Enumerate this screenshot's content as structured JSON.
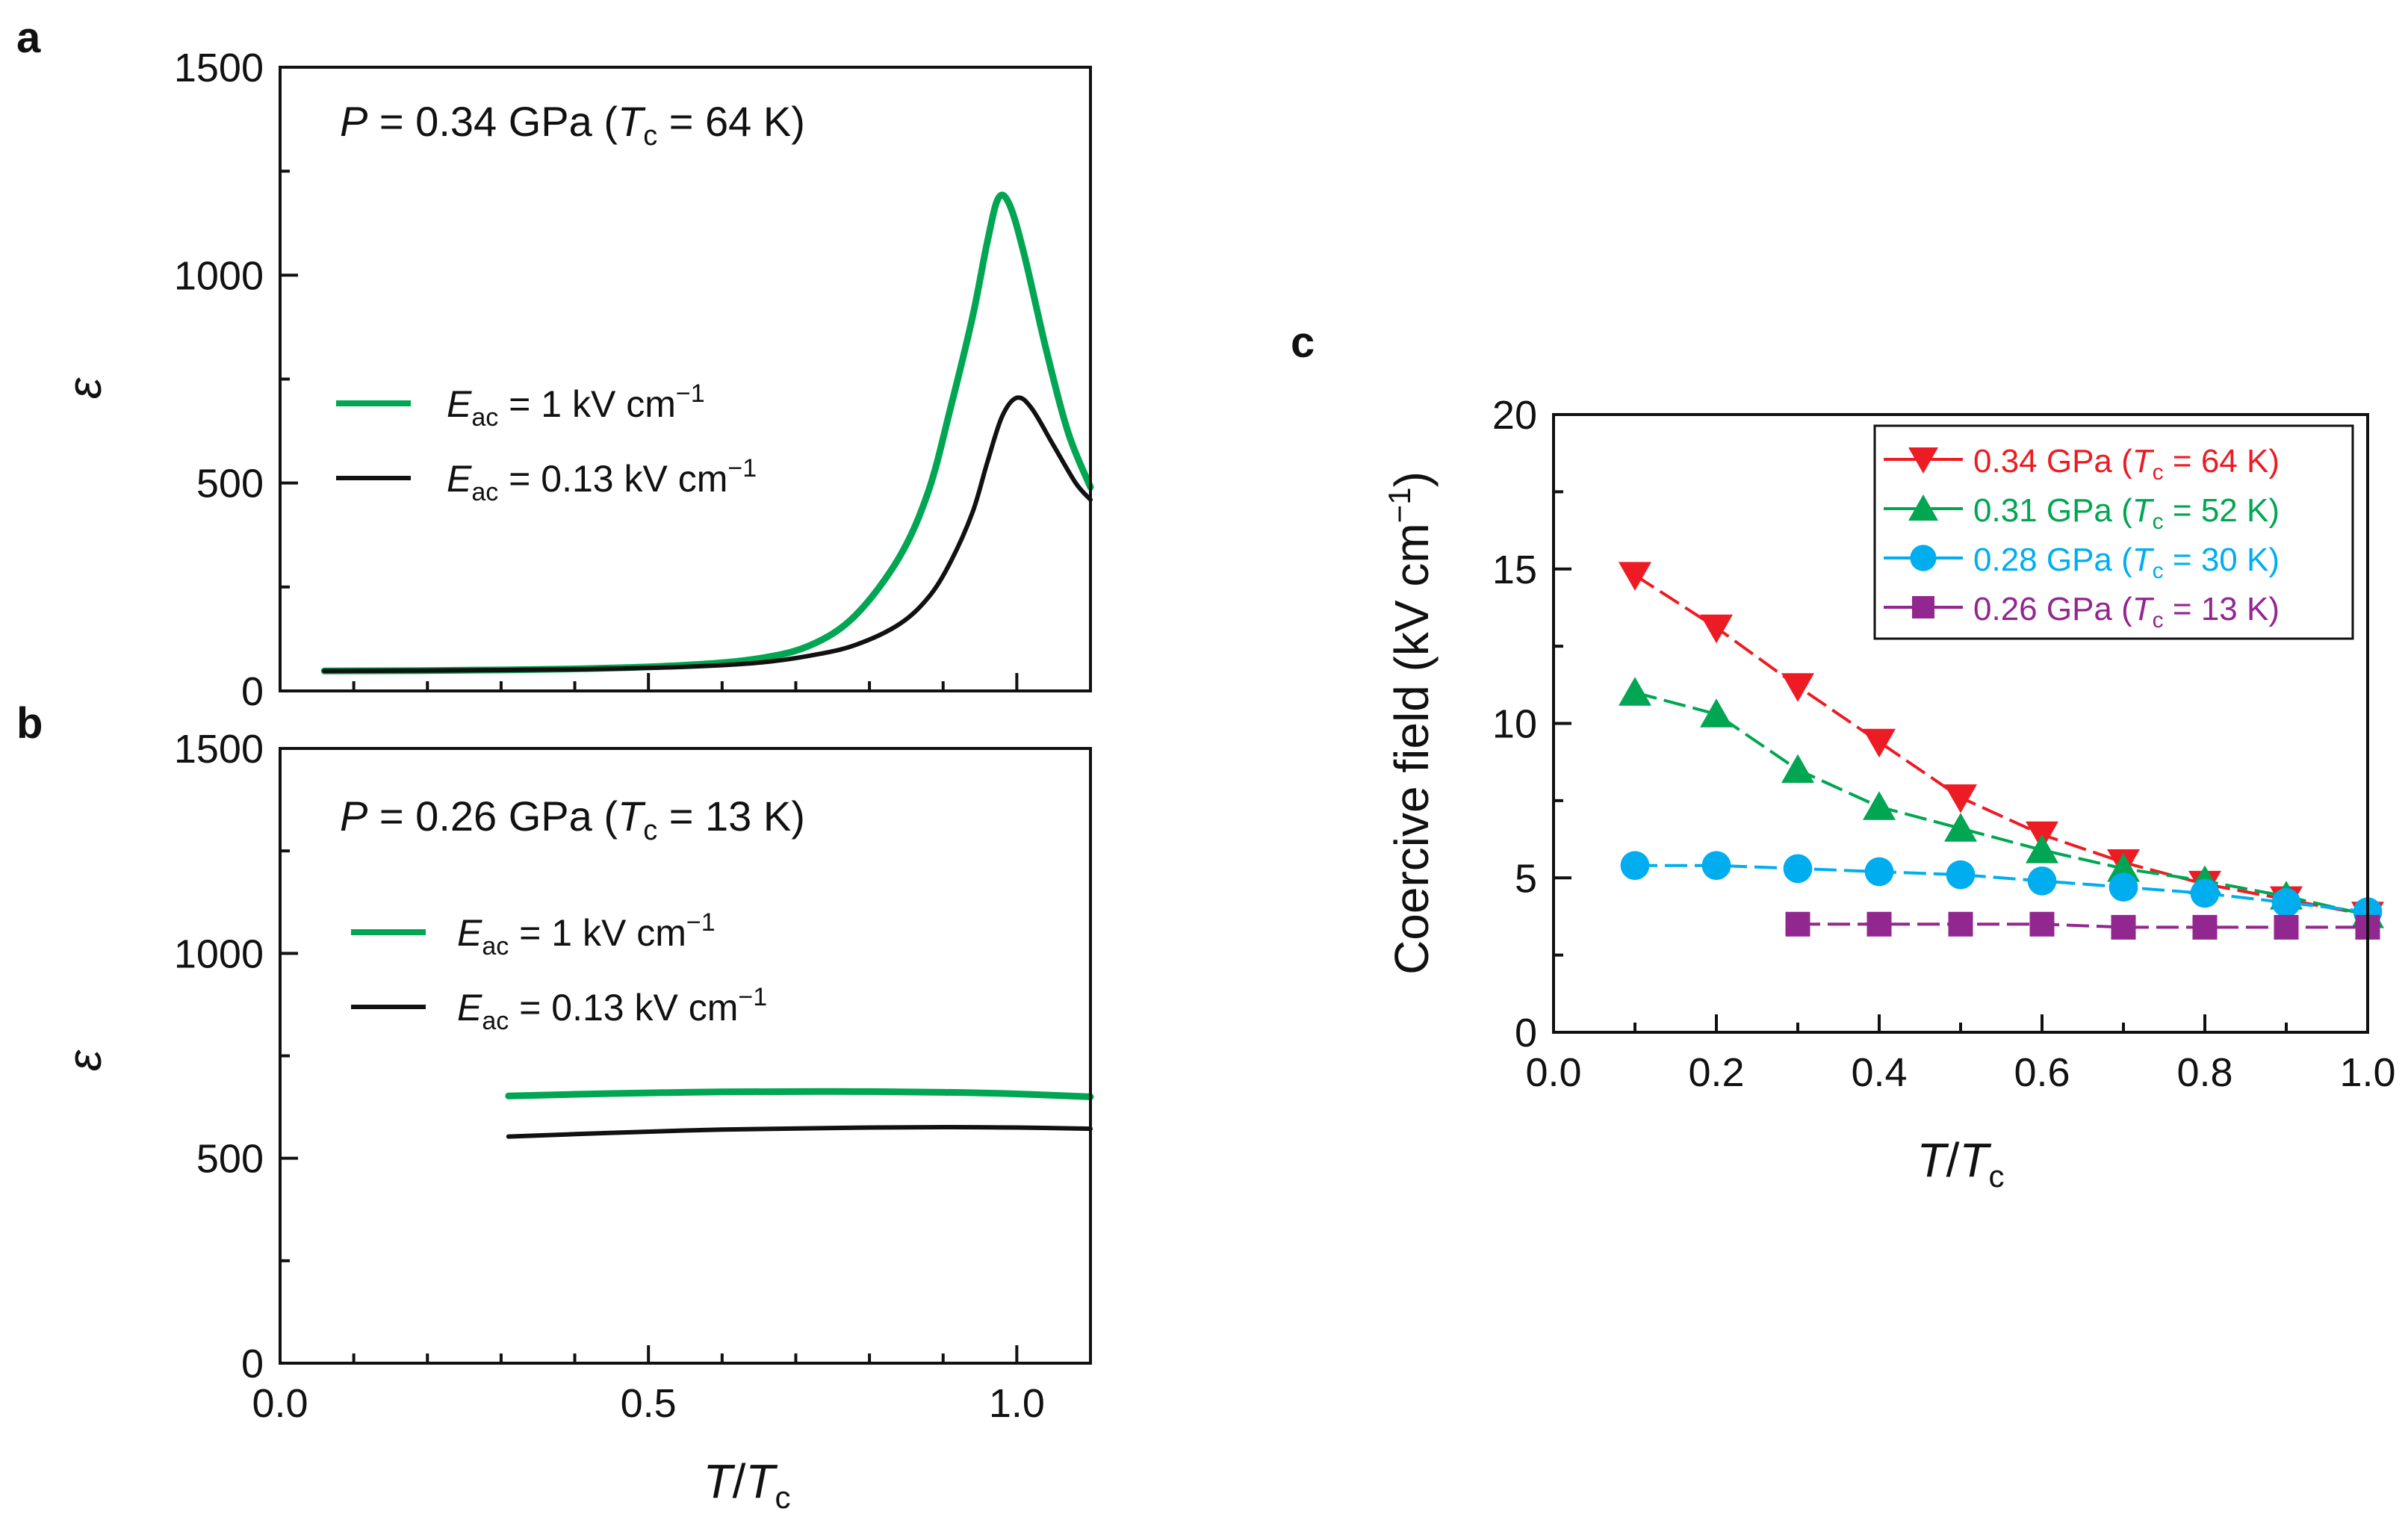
{
  "chart_data": [
    {
      "panel": "a",
      "type": "line",
      "annotation": {
        "p_sym": "P",
        "p_val": " = 0.34 GPa (",
        "t_sym": "T",
        "t_sub": "c",
        "t_val": " = 64 K)"
      },
      "xlabel": {
        "sym1": "T",
        "slash": "/",
        "sym2": "T",
        "sub": "c"
      },
      "ylabel": "ε",
      "xlim": [
        0.0,
        1.1
      ],
      "ylim": [
        0,
        1500
      ],
      "xticks": [
        "0.0",
        "0.5",
        "1.0"
      ],
      "xtick_values": [
        0.0,
        0.5,
        1.0
      ],
      "yticks": [
        "0",
        "500",
        "1000",
        "1500"
      ],
      "ytick_values": [
        0,
        500,
        1000,
        1500
      ],
      "show_xtick_labels": false,
      "series": [
        {
          "name": "E_ac = 1 kV cm−1",
          "color": "#00a651",
          "label": {
            "sym": "E",
            "sub": "ac",
            "val": " = 1 kV cm",
            "sup": "−1"
          },
          "x": [
            0.06,
            0.2,
            0.4,
            0.55,
            0.65,
            0.72,
            0.78,
            0.84,
            0.88,
            0.91,
            0.94,
            0.96,
            0.975,
            0.99,
            1.01,
            1.04,
            1.07,
            1.1
          ],
          "y": [
            48,
            49,
            53,
            62,
            78,
            110,
            180,
            320,
            480,
            680,
            900,
            1080,
            1185,
            1170,
            1050,
            820,
            620,
            490
          ]
        },
        {
          "name": "E_ac = 0.13 kV cm−1",
          "color": "#111111",
          "label": {
            "sym": "E",
            "sub": "ac",
            "val": " = 0.13 kV cm",
            "sup": "−1"
          },
          "x": [
            0.06,
            0.2,
            0.4,
            0.55,
            0.65,
            0.72,
            0.78,
            0.84,
            0.88,
            0.91,
            0.94,
            0.96,
            0.98,
            1.0,
            1.02,
            1.05,
            1.08,
            1.1
          ],
          "y": [
            48,
            49,
            52,
            58,
            68,
            85,
            110,
            160,
            225,
            310,
            430,
            550,
            660,
            705,
            680,
            590,
            500,
            460
          ]
        }
      ]
    },
    {
      "panel": "b",
      "type": "line",
      "annotation": {
        "p_sym": "P",
        "p_val": " = 0.26 GPa (",
        "t_sym": "T",
        "t_sub": "c",
        "t_val": " = 13 K)"
      },
      "xlabel": {
        "sym1": "T",
        "slash": "/",
        "sym2": "T",
        "sub": "c"
      },
      "ylabel": "ε",
      "xlim": [
        0.0,
        1.1
      ],
      "ylim": [
        0,
        1500
      ],
      "xticks": [
        "0.0",
        "0.5",
        "1.0"
      ],
      "xtick_values": [
        0.0,
        0.5,
        1.0
      ],
      "yticks": [
        "0",
        "500",
        "1000",
        "1500"
      ],
      "ytick_values": [
        0,
        500,
        1000,
        1500
      ],
      "show_xtick_labels": true,
      "series": [
        {
          "name": "E_ac = 1 kV cm−1",
          "color": "#00a651",
          "label": {
            "sym": "E",
            "sub": "ac",
            "val": " = 1 kV cm",
            "sup": "−1"
          },
          "x": [
            0.31,
            0.45,
            0.6,
            0.75,
            0.9,
            1.0,
            1.1
          ],
          "y": [
            652,
            658,
            662,
            663,
            661,
            657,
            650
          ]
        },
        {
          "name": "E_ac = 0.13 kV cm−1",
          "color": "#111111",
          "label": {
            "sym": "E",
            "sub": "ac",
            "val": " = 0.13 kV cm",
            "sup": "−1"
          },
          "x": [
            0.31,
            0.45,
            0.6,
            0.75,
            0.9,
            1.0,
            1.1
          ],
          "y": [
            553,
            562,
            570,
            574,
            576,
            575,
            572
          ]
        }
      ]
    },
    {
      "panel": "c",
      "type": "line",
      "xlabel": {
        "sym1": "T",
        "slash": "/",
        "sym2": "T",
        "sub": "c"
      },
      "ylabel": {
        "text": "Coercive field (kV cm",
        "sup": "−1",
        "close": ")"
      },
      "xlim": [
        0.0,
        1.0
      ],
      "ylim": [
        0,
        20
      ],
      "xticks": [
        "0.0",
        "0.2",
        "0.4",
        "0.6",
        "0.8",
        "1.0"
      ],
      "xtick_values": [
        0.0,
        0.2,
        0.4,
        0.6,
        0.8,
        1.0
      ],
      "yticks": [
        "0",
        "5",
        "10",
        "15",
        "20"
      ],
      "ytick_values": [
        0,
        5,
        10,
        15,
        20
      ],
      "legend_position": "top-right",
      "series": [
        {
          "name": "0.34 GPa (Tc = 64 K)",
          "color": "#ed1c24",
          "marker": "triangle-down",
          "label": {
            "val": "0.34 GPa (",
            "sym": "T",
            "sub": "c",
            "rest": " = 64 K)"
          },
          "x": [
            0.1,
            0.2,
            0.3,
            0.4,
            0.5,
            0.6,
            0.7,
            0.8,
            0.9,
            1.0
          ],
          "y": [
            14.8,
            13.1,
            11.2,
            9.4,
            7.6,
            6.4,
            5.5,
            4.8,
            4.3,
            3.8
          ]
        },
        {
          "name": "0.31 GPa (Tc = 52 K)",
          "color": "#00a651",
          "marker": "triangle-up",
          "label": {
            "val": "0.31 GPa (",
            "sym": "T",
            "sub": "c",
            "rest": " = 52 K)"
          },
          "x": [
            0.1,
            0.2,
            0.3,
            0.4,
            0.5,
            0.6,
            0.7,
            0.8,
            0.9,
            1.0
          ],
          "y": [
            11.0,
            10.3,
            8.5,
            7.3,
            6.6,
            5.9,
            5.3,
            4.9,
            4.4,
            3.8
          ]
        },
        {
          "name": "0.28 GPa (Tc = 30 K)",
          "color": "#00aeef",
          "marker": "circle",
          "label": {
            "val": "0.28 GPa (",
            "sym": "T",
            "sub": "c",
            "rest": " = 30 K)"
          },
          "x": [
            0.1,
            0.2,
            0.3,
            0.4,
            0.5,
            0.6,
            0.7,
            0.8,
            0.9,
            1.0
          ],
          "y": [
            5.4,
            5.4,
            5.3,
            5.2,
            5.1,
            4.9,
            4.7,
            4.5,
            4.2,
            3.9
          ]
        },
        {
          "name": "0.26 GPa (Tc = 13 K)",
          "color": "#92278f",
          "marker": "square",
          "label": {
            "val": "0.26 GPa (",
            "sym": "T",
            "sub": "c",
            "rest": " = 13 K)"
          },
          "x": [
            0.3,
            0.4,
            0.5,
            0.6,
            0.7,
            0.8,
            0.9,
            1.0
          ],
          "y": [
            3.5,
            3.5,
            3.5,
            3.5,
            3.4,
            3.4,
            3.4,
            3.4
          ]
        }
      ]
    }
  ]
}
